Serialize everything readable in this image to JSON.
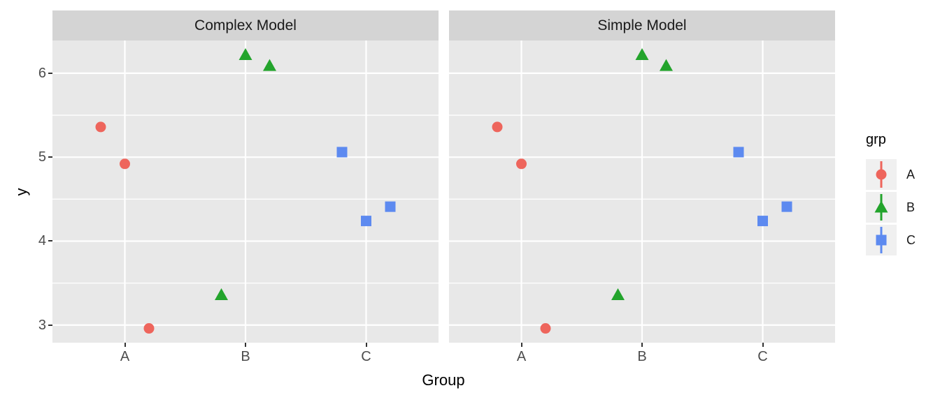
{
  "chart_data": {
    "type": "scatter",
    "facets": [
      "Complex Model",
      "Simple Model"
    ],
    "facet_note": "both facets display identical points",
    "xlabel": "Group",
    "ylabel": "y",
    "categories": [
      "A",
      "B",
      "C"
    ],
    "xlim": [
      0.4,
      3.6
    ],
    "ylim": [
      2.79,
      6.39
    ],
    "yticks": [
      3,
      4,
      5,
      6
    ],
    "yticks_minor": [
      3.5,
      4.5,
      5.5
    ],
    "grid": true,
    "legend": {
      "title": "grp",
      "position": "right",
      "entries": [
        {
          "label": "A",
          "shape": "circle",
          "color": "#EE655C"
        },
        {
          "label": "B",
          "shape": "triangle",
          "color": "#23A42C"
        },
        {
          "label": "C",
          "shape": "square",
          "color": "#5D8AF0"
        }
      ]
    },
    "series": [
      {
        "name": "A",
        "shape": "circle",
        "color": "#EE655C",
        "points": [
          {
            "x": 0.8,
            "y": 5.36
          },
          {
            "x": 1.0,
            "y": 4.92
          },
          {
            "x": 1.2,
            "y": 2.96
          }
        ]
      },
      {
        "name": "B",
        "shape": "triangle",
        "color": "#23A42C",
        "points": [
          {
            "x": 1.8,
            "y": 3.36
          },
          {
            "x": 2.0,
            "y": 6.22
          },
          {
            "x": 2.2,
            "y": 6.09
          }
        ]
      },
      {
        "name": "C",
        "shape": "square",
        "color": "#5D8AF0",
        "points": [
          {
            "x": 2.8,
            "y": 5.06
          },
          {
            "x": 3.0,
            "y": 4.24
          },
          {
            "x": 3.2,
            "y": 4.41
          }
        ]
      }
    ]
  },
  "colors": {
    "panel_background": "#E8E8E8",
    "strip_background": "#D4D4D4",
    "gridline": "#FFFFFF",
    "legend_key_background": "#F0F0F0",
    "axis_text": "#4D4D4D",
    "strip_text": "#1A1A1A",
    "axis_title": "#000000",
    "tick_mark": "#333333",
    "legend_text": "#1A1A1A"
  }
}
